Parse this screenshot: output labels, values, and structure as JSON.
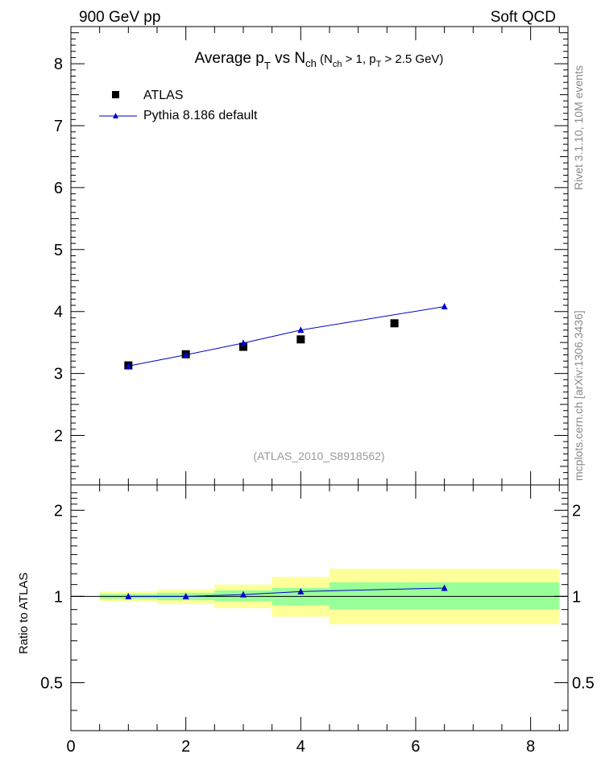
{
  "header": {
    "left": "900 GeV pp",
    "right": "Soft QCD"
  },
  "side": {
    "rivet": "Rivet 3.1.10,  10M events",
    "mcplots": "mcplots.cern.ch [arXiv:1306.3436]"
  },
  "colors": {
    "mc_line": "#0000cc",
    "data_marker": "#000000",
    "band_inner": "#99ff99",
    "band_outer": "#ffff99"
  },
  "chart_data": [
    {
      "type": "scatter",
      "title": {
        "main_a": "Average p",
        "main_sub_t": "T",
        "main_b": " vs N",
        "main_sub_ch": "ch",
        "cond_a": " (N",
        "cond_sub_ch": "ch",
        "cond_b": " > 1, p",
        "cond_sub_t": "T",
        "cond_c": " > 2.5 GeV)"
      },
      "watermark": "(ATLAS_2010_S8918562)",
      "ylim": [
        1.2,
        8.6
      ],
      "y_ticks": [
        "2",
        "3",
        "4",
        "5",
        "6",
        "7",
        "8"
      ],
      "legend": [
        "ATLAS",
        "Pythia 8.186 default"
      ],
      "legend_position": "top-left",
      "series": [
        {
          "name": "ATLAS",
          "marker": "square",
          "x": [
            1,
            2,
            3,
            4,
            5.63
          ],
          "y": [
            3.13,
            3.31,
            3.43,
            3.55,
            3.81
          ]
        },
        {
          "name": "Pythia 8.186 default",
          "marker": "triangle",
          "x": [
            1,
            2,
            3,
            4,
            6.5
          ],
          "y": [
            3.12,
            3.3,
            3.49,
            3.7,
            4.08
          ]
        }
      ]
    },
    {
      "type": "line",
      "ylabel": "Ratio to ATLAS",
      "xlim": [
        0,
        8.65
      ],
      "ylim": [
        0.34,
        2.45
      ],
      "y_ticks": [
        "0.5",
        "1",
        "2"
      ],
      "x_ticks": [
        "0",
        "2",
        "4",
        "6",
        "8"
      ],
      "bins": [
        {
          "lo": 0.5,
          "hi": 1.5,
          "inner": [
            0.98,
            1.02
          ],
          "outer": [
            0.96,
            1.04
          ]
        },
        {
          "lo": 1.5,
          "hi": 2.5,
          "inner": [
            0.97,
            1.03
          ],
          "outer": [
            0.94,
            1.06
          ]
        },
        {
          "lo": 2.5,
          "hi": 3.5,
          "inner": [
            0.96,
            1.05
          ],
          "outer": [
            0.91,
            1.1
          ]
        },
        {
          "lo": 3.5,
          "hi": 4.5,
          "inner": [
            0.93,
            1.07
          ],
          "outer": [
            0.85,
            1.17
          ]
        },
        {
          "lo": 4.5,
          "hi": 8.5,
          "inner": [
            0.9,
            1.12
          ],
          "outer": [
            0.8,
            1.25
          ]
        }
      ],
      "series": [
        {
          "name": "Pythia 8.186 default",
          "x": [
            1,
            2,
            3,
            4,
            6.5
          ],
          "y": [
            1.0,
            1.0,
            1.015,
            1.04,
            1.07
          ]
        }
      ]
    }
  ]
}
